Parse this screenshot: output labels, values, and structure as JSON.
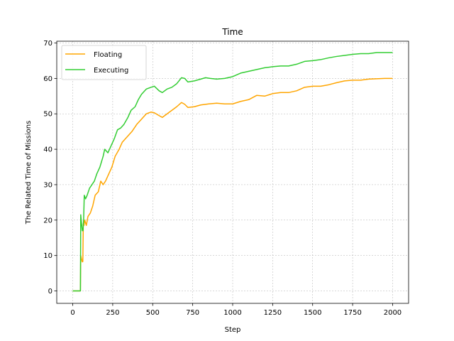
{
  "chart_data": {
    "type": "line",
    "title": "Time",
    "xlabel": "Step",
    "ylabel": "The Related Time of Missions",
    "xlim": [
      -100,
      2100
    ],
    "ylim": [
      -3.5,
      70.5
    ],
    "xticks": [
      0,
      250,
      500,
      750,
      1000,
      1250,
      1500,
      1750,
      2000
    ],
    "yticks": [
      0,
      10,
      20,
      30,
      40,
      50,
      60,
      70
    ],
    "grid": true,
    "legend_position": "top-left",
    "series": [
      {
        "name": "Floating",
        "color": "#ffa500",
        "points": [
          [
            0,
            0
          ],
          [
            48,
            0
          ],
          [
            50,
            10
          ],
          [
            55,
            9
          ],
          [
            60,
            8.2
          ],
          [
            63,
            8.3
          ],
          [
            66,
            19
          ],
          [
            70,
            18.5
          ],
          [
            75,
            20
          ],
          [
            85,
            18.5
          ],
          [
            95,
            21
          ],
          [
            110,
            22
          ],
          [
            125,
            24
          ],
          [
            140,
            27
          ],
          [
            160,
            28
          ],
          [
            175,
            31
          ],
          [
            190,
            30
          ],
          [
            205,
            31
          ],
          [
            225,
            33
          ],
          [
            245,
            35
          ],
          [
            265,
            38
          ],
          [
            290,
            40
          ],
          [
            310,
            42
          ],
          [
            330,
            43
          ],
          [
            350,
            44
          ],
          [
            370,
            45
          ],
          [
            400,
            47
          ],
          [
            430,
            48.5
          ],
          [
            460,
            50
          ],
          [
            490,
            50.5
          ],
          [
            510,
            50.3
          ],
          [
            540,
            49.5
          ],
          [
            560,
            49
          ],
          [
            590,
            50
          ],
          [
            620,
            51
          ],
          [
            650,
            52
          ],
          [
            680,
            53.2
          ],
          [
            700,
            52.7
          ],
          [
            720,
            51.8
          ],
          [
            760,
            52
          ],
          [
            800,
            52.5
          ],
          [
            850,
            52.8
          ],
          [
            900,
            53
          ],
          [
            950,
            52.8
          ],
          [
            1000,
            52.8
          ],
          [
            1050,
            53.5
          ],
          [
            1100,
            54
          ],
          [
            1150,
            55.2
          ],
          [
            1200,
            55
          ],
          [
            1250,
            55.7
          ],
          [
            1300,
            56
          ],
          [
            1350,
            56
          ],
          [
            1400,
            56.5
          ],
          [
            1450,
            57.5
          ],
          [
            1500,
            57.8
          ],
          [
            1550,
            57.8
          ],
          [
            1600,
            58.2
          ],
          [
            1650,
            58.8
          ],
          [
            1700,
            59.3
          ],
          [
            1750,
            59.5
          ],
          [
            1800,
            59.5
          ],
          [
            1850,
            59.8
          ],
          [
            1900,
            59.9
          ],
          [
            1950,
            60
          ],
          [
            2000,
            60
          ]
        ]
      },
      {
        "name": "Executing",
        "color": "#32cd32",
        "points": [
          [
            0,
            0
          ],
          [
            48,
            0
          ],
          [
            50,
            21.5
          ],
          [
            55,
            19
          ],
          [
            60,
            17
          ],
          [
            64,
            17
          ],
          [
            68,
            20
          ],
          [
            72,
            27
          ],
          [
            80,
            26
          ],
          [
            90,
            27
          ],
          [
            105,
            29
          ],
          [
            120,
            30
          ],
          [
            135,
            31
          ],
          [
            150,
            33
          ],
          [
            170,
            35
          ],
          [
            190,
            38
          ],
          [
            200,
            40
          ],
          [
            220,
            39
          ],
          [
            240,
            41
          ],
          [
            260,
            43
          ],
          [
            280,
            45.5
          ],
          [
            300,
            46
          ],
          [
            320,
            47
          ],
          [
            345,
            49
          ],
          [
            365,
            51
          ],
          [
            390,
            52
          ],
          [
            410,
            54
          ],
          [
            430,
            55.5
          ],
          [
            460,
            57
          ],
          [
            490,
            57.5
          ],
          [
            510,
            57.8
          ],
          [
            540,
            56.5
          ],
          [
            560,
            56
          ],
          [
            590,
            57
          ],
          [
            620,
            57.5
          ],
          [
            650,
            58.5
          ],
          [
            680,
            60.2
          ],
          [
            700,
            60
          ],
          [
            720,
            59
          ],
          [
            760,
            59.3
          ],
          [
            800,
            59.8
          ],
          [
            830,
            60.2
          ],
          [
            860,
            60
          ],
          [
            900,
            59.8
          ],
          [
            950,
            60
          ],
          [
            1000,
            60.5
          ],
          [
            1050,
            61.5
          ],
          [
            1100,
            62
          ],
          [
            1150,
            62.5
          ],
          [
            1200,
            63
          ],
          [
            1250,
            63.3
          ],
          [
            1300,
            63.5
          ],
          [
            1350,
            63.5
          ],
          [
            1400,
            64
          ],
          [
            1450,
            64.8
          ],
          [
            1500,
            65
          ],
          [
            1550,
            65.3
          ],
          [
            1600,
            65.8
          ],
          [
            1650,
            66.2
          ],
          [
            1700,
            66.5
          ],
          [
            1750,
            66.8
          ],
          [
            1800,
            67
          ],
          [
            1850,
            67
          ],
          [
            1900,
            67.3
          ],
          [
            1950,
            67.3
          ],
          [
            2000,
            67.3
          ]
        ]
      }
    ]
  }
}
